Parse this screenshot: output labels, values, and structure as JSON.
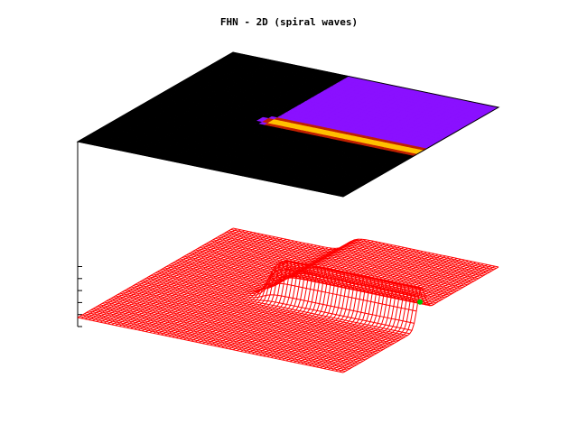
{
  "chart_data": {
    "type": "surface",
    "title": "FHN - 2D (spiral waves)",
    "projection": "3d-surface-with-colormap-on-top",
    "grid": false,
    "colors": {
      "surface_mesh": "#ff0000",
      "mesh_highlight": "#00c000",
      "map_background": "#000000",
      "map_recovered": "#8a10ff",
      "map_wave_edge": "#c02000",
      "map_wave_core": "#ffc000"
    },
    "z_ticks_count": 6
  }
}
